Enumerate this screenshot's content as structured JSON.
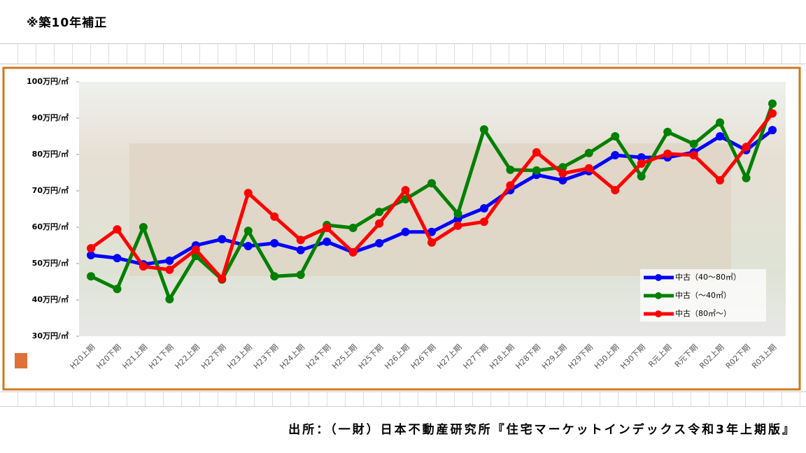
{
  "header": "※築10年補正",
  "source": "出所：（一財）日本不動産研究所『住宅マーケットインデックス令和3年上期版』",
  "chart_data": {
    "type": "line",
    "categories": [
      "H20上期",
      "H20下期",
      "H21上期",
      "H21下期",
      "H22上期",
      "H22下期",
      "H23上期",
      "H23下期",
      "H24上期",
      "H24下期",
      "H25上期",
      "H25下期",
      "H26上期",
      "H26下期",
      "H27上期",
      "H27下期",
      "H28上期",
      "H28下期",
      "H29上期",
      "H29下期",
      "H30上期",
      "H30下期",
      "R元上期",
      "R元下期",
      "R02上期",
      "R02下期",
      "R03上期"
    ],
    "series": [
      {
        "name": "中古（40～80㎡）",
        "color": "#0000ff",
        "values": [
          52.3,
          51.5,
          49.8,
          50.8,
          55,
          56.7,
          54.8,
          55.6,
          53.7,
          56,
          53.1,
          55.6,
          58.7,
          58.7,
          62.3,
          65.2,
          70.2,
          74.4,
          72.9,
          75.4,
          79.8,
          79.2,
          79.2,
          80.6,
          85,
          81.2,
          86.7
        ]
      },
      {
        "name": "中古（～40㎡）",
        "color": "#008000",
        "values": [
          46.5,
          43,
          60,
          40.2,
          52.1,
          45.6,
          59,
          46.5,
          46.9,
          60.6,
          59.8,
          64.2,
          67.7,
          72.1,
          63.7,
          86.9,
          75.8,
          75.6,
          76.5,
          80.4,
          85,
          74,
          86.2,
          82.9,
          88.8,
          73.5,
          94
        ]
      },
      {
        "name": "中古（80㎡～）",
        "color": "#ff0000",
        "values": [
          54.2,
          59.4,
          49.2,
          48.3,
          53.8,
          45.8,
          69.4,
          62.9,
          56.5,
          59.8,
          53.1,
          61,
          70.2,
          55.8,
          60.4,
          61.5,
          71.5,
          80.6,
          74.8,
          76.2,
          70.2,
          77.5,
          80.2,
          79.8,
          72.9,
          82.1,
          91.3
        ]
      }
    ],
    "ylim": [
      30,
      100
    ],
    "yticks": [
      {
        "value": 30,
        "label": "30万円/㎡"
      },
      {
        "value": 40,
        "label": "40万円/㎡"
      },
      {
        "value": 50,
        "label": "50万円/㎡"
      },
      {
        "value": 60,
        "label": "60万円/㎡"
      },
      {
        "value": 70,
        "label": "70万円/㎡"
      },
      {
        "value": 80,
        "label": "80万円/㎡"
      },
      {
        "value": 90,
        "label": "90万円/㎡"
      },
      {
        "value": 100,
        "label": "100万円/㎡"
      }
    ],
    "legend": "lower right"
  }
}
